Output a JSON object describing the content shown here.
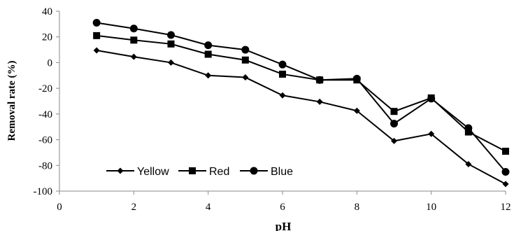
{
  "chart_data": {
    "type": "line",
    "xlabel": "pH",
    "ylabel": "Removal rate (%)",
    "xlim": [
      0,
      12
    ],
    "ylim": [
      -100,
      40
    ],
    "xticks": [
      0,
      2,
      4,
      6,
      8,
      10,
      12
    ],
    "yticks": [
      40,
      20,
      0,
      -20,
      -40,
      -60,
      -80,
      -100
    ],
    "grid": false,
    "legend_position": "bottom-left",
    "x": [
      1,
      2,
      3,
      4,
      5,
      6,
      7,
      8,
      9,
      10,
      11,
      12
    ],
    "series": [
      {
        "name": "Yellow",
        "marker": "diamond",
        "color": "#000000",
        "values": [
          9.5,
          4.5,
          0,
          -10,
          -11.5,
          -25.5,
          -30.5,
          -37.5,
          -61,
          -55.5,
          -79,
          -94.5
        ]
      },
      {
        "name": "Red",
        "marker": "square",
        "color": "#000000",
        "values": [
          21,
          17.5,
          14.5,
          6.5,
          2,
          -9,
          -13.5,
          -13.5,
          -38,
          -27.5,
          -54,
          -69
        ]
      },
      {
        "name": "Blue",
        "marker": "circle",
        "color": "#000000",
        "values": [
          31,
          26.5,
          21.5,
          13.5,
          10,
          -1.5,
          -13.5,
          -12.5,
          -47.5,
          -28,
          -51,
          -85
        ]
      }
    ]
  }
}
